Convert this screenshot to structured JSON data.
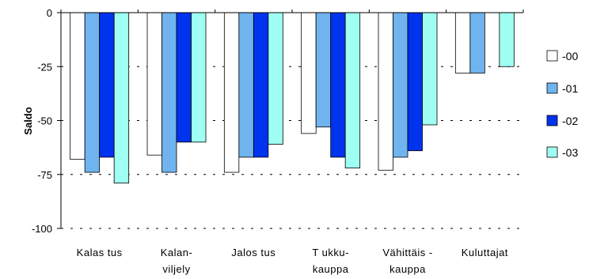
{
  "chart_data": {
    "type": "bar",
    "title": "",
    "xlabel": "",
    "ylabel": "Saldo",
    "ylim": [
      -100,
      0
    ],
    "yticks": [
      0,
      -25,
      -50,
      -75,
      -100
    ],
    "grid": "horizontal dashed",
    "legend_position": "right",
    "categories": [
      [
        "Kalas tus"
      ],
      [
        "Kalan-",
        "viljely"
      ],
      [
        "Jalos tus"
      ],
      [
        "T ukku-",
        "kauppa"
      ],
      [
        "Vähittäis -",
        "kauppa"
      ],
      [
        "Kuluttajat"
      ]
    ],
    "series": [
      {
        "name": "-00",
        "color": "#ffffff",
        "values": [
          -68,
          -66,
          -74,
          -56,
          -73,
          -28
        ]
      },
      {
        "name": "-01",
        "color": "#6fb4ee",
        "values": [
          -74,
          -74,
          -67,
          -53,
          -67,
          -28
        ]
      },
      {
        "name": "-02",
        "color": "#0033ee",
        "values": [
          -67,
          -60,
          -67,
          -67,
          -64,
          null
        ]
      },
      {
        "name": "-03",
        "color": "#9ffff2",
        "values": [
          -79,
          -60,
          -61,
          -72,
          -52,
          -25
        ]
      }
    ]
  }
}
